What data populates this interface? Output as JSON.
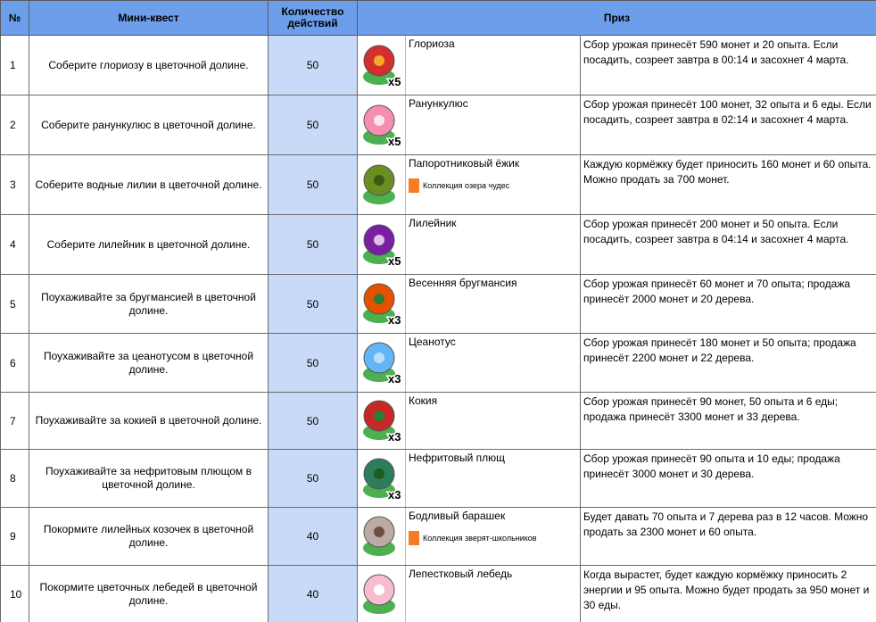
{
  "header": {
    "num": "№",
    "quest": "Мини-квест",
    "count": "Количество действий",
    "prize": "Приз"
  },
  "rows": [
    {
      "num": 1,
      "quest": "Соберите глориозу в цветочной долине.",
      "count": 50,
      "item": "Глориоза",
      "qty": "x5",
      "description": "Сбор урожая принесёт 590 монет и 20 опыта. Если посадить, созреет завтра в 00:14 и засохнет 4 марта."
    },
    {
      "num": 2,
      "quest": "Соберите ранункулюс в цветочной долине.",
      "count": 50,
      "item": "Ранункулюс",
      "qty": "x5",
      "description": "Сбор урожая принесёт 100 монет, 32 опыта и 6 еды. Если посадить, созреет завтра в 02:14 и засохнет 4 марта."
    },
    {
      "num": 3,
      "quest": "Соберите водные лилии в цветочной долине.",
      "count": 50,
      "item": "Папоротниковый ёжик",
      "collection": "Коллекция озера чудес",
      "description": "Каждую кормёжку будет приносить 160 монет и 60 опыта. Можно продать за 700 монет."
    },
    {
      "num": 4,
      "quest": "Соберите лилейник в цветочной долине.",
      "count": 50,
      "item": "Лилейник",
      "qty": "x5",
      "description": "Сбор урожая принесёт 200 монет и 50 опыта. Если посадить, созреет завтра в 04:14 и засохнет 4 марта."
    },
    {
      "num": 5,
      "quest": "Поухаживайте за бругмансией в цветочной долине.",
      "count": 50,
      "item": "Весенняя бругмансия",
      "qty": "x3",
      "description": "Сбор урожая принесёт 60 монет и 70 опыта; продажа принесёт 2000 монет и 20 дерева."
    },
    {
      "num": 6,
      "quest": "Поухаживайте за цеанотусом в цветочной долине.",
      "count": 50,
      "item": "Цеанотус",
      "qty": "x3",
      "description": "Сбор урожая принесёт 180 монет и 50 опыта; продажа принесёт 2200 монет и 22 дерева."
    },
    {
      "num": 7,
      "quest": "Поухаживайте за кокией в цветочной долине.",
      "count": 50,
      "item": "Кокия",
      "qty": "x3",
      "description": "Сбор урожая принесёт 90 монет, 50 опыта и 6 еды; продажа принесёт 3300 монет и 33 дерева."
    },
    {
      "num": 8,
      "quest": "Поухаживайте за нефритовым плющом в цветочной долине.",
      "count": 50,
      "item": "Нефритовый плющ",
      "qty": "x3",
      "description": "Сбор урожая принесёт 90 опыта и 10 еды; продажа принесёт 3000 монет и 30 дерева."
    },
    {
      "num": 9,
      "quest": "Покормите лилейных козочек в цветочной долине.",
      "count": 40,
      "item": "Бодливый барашек",
      "collection": "Коллекция зверят-школьников",
      "description": "Будет давать 70 опыта и 7 дерева раз в 12 часов. Можно продать за 2300 монет и 60 опыта."
    },
    {
      "num": 10,
      "quest": "Покормите цветочных лебедей в цветочной долине.",
      "count": 40,
      "item": "Лепестковый лебедь",
      "description": "Когда вырастет, будет каждую кормёжку приносить 2 энергии и 95 опыта. Можно будет продать за 950 монет и 30 еды."
    }
  ]
}
